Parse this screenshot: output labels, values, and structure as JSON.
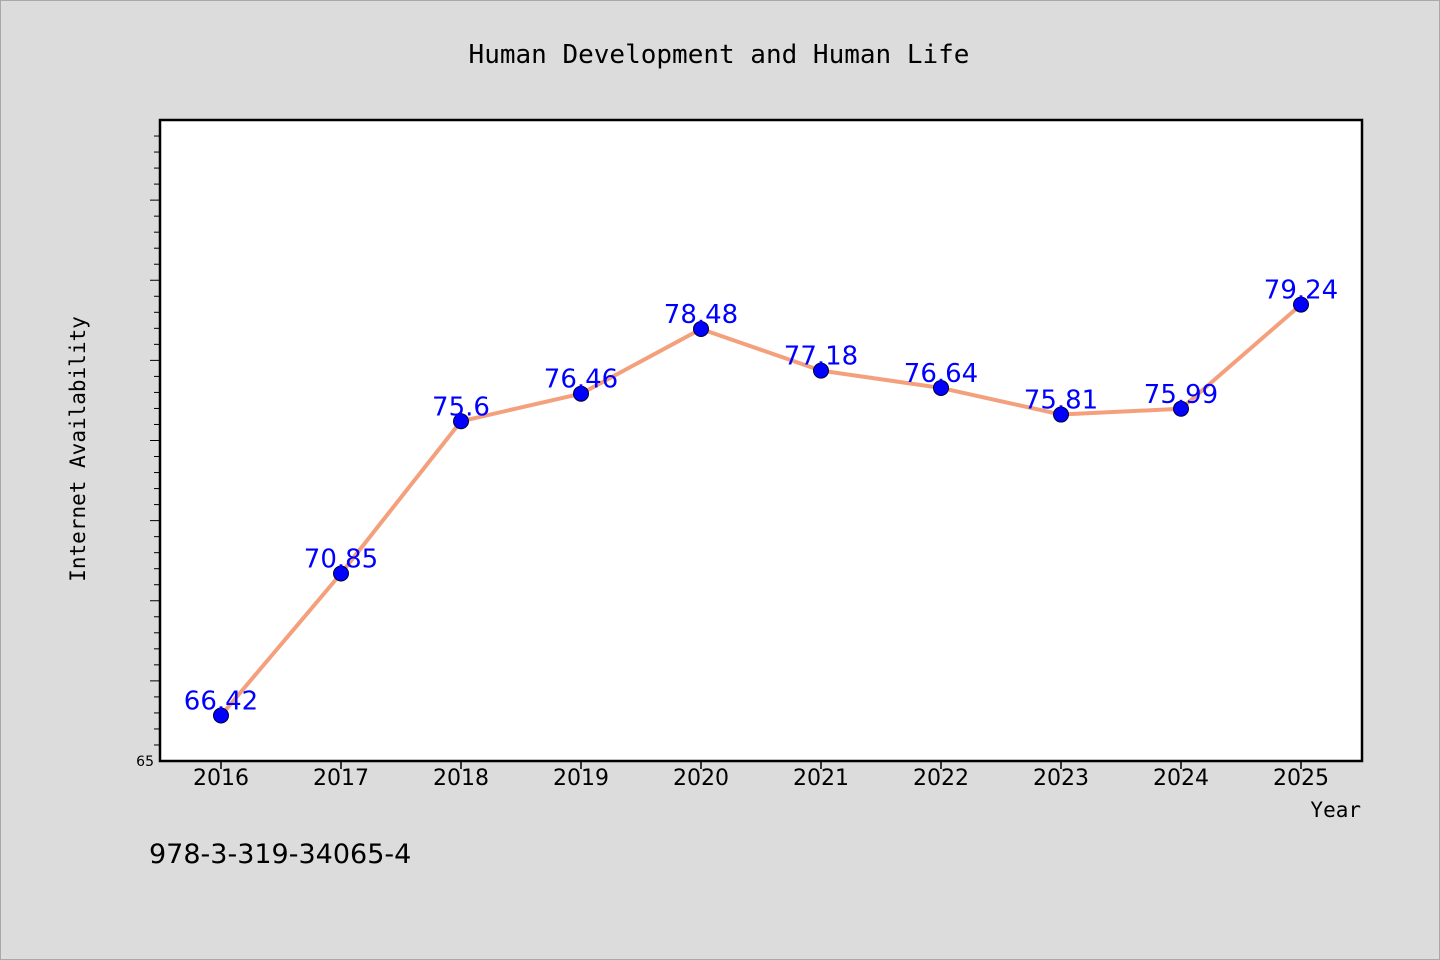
{
  "chart_data": {
    "type": "line",
    "title": "Human Development and Human Life",
    "xlabel": "Year",
    "ylabel": "Internet Availability",
    "categories": [
      "2016",
      "2017",
      "2018",
      "2019",
      "2020",
      "2021",
      "2022",
      "2023",
      "2024",
      "2025"
    ],
    "series": [
      {
        "values": [
          66.42,
          70.85,
          75.6,
          76.46,
          78.48,
          77.18,
          76.64,
          75.81,
          75.99,
          79.24
        ]
      }
    ],
    "data_labels": [
      "66.42",
      "70.85",
      "75.6",
      "76.46",
      "78.48",
      "77.18",
      "76.64",
      "75.81",
      "75.99",
      "79.24"
    ],
    "ylim": [
      65,
      85
    ],
    "yticks_labeled": [
      "65"
    ],
    "grid": false,
    "legend": "none",
    "colors": {
      "line": "#f4a07c",
      "marker": "#0000ff",
      "data_label": "#0000ff",
      "background": "#dcdcdc",
      "plot_background": "#ffffff"
    }
  },
  "footer": {
    "text": "978-3-319-34065-4"
  }
}
